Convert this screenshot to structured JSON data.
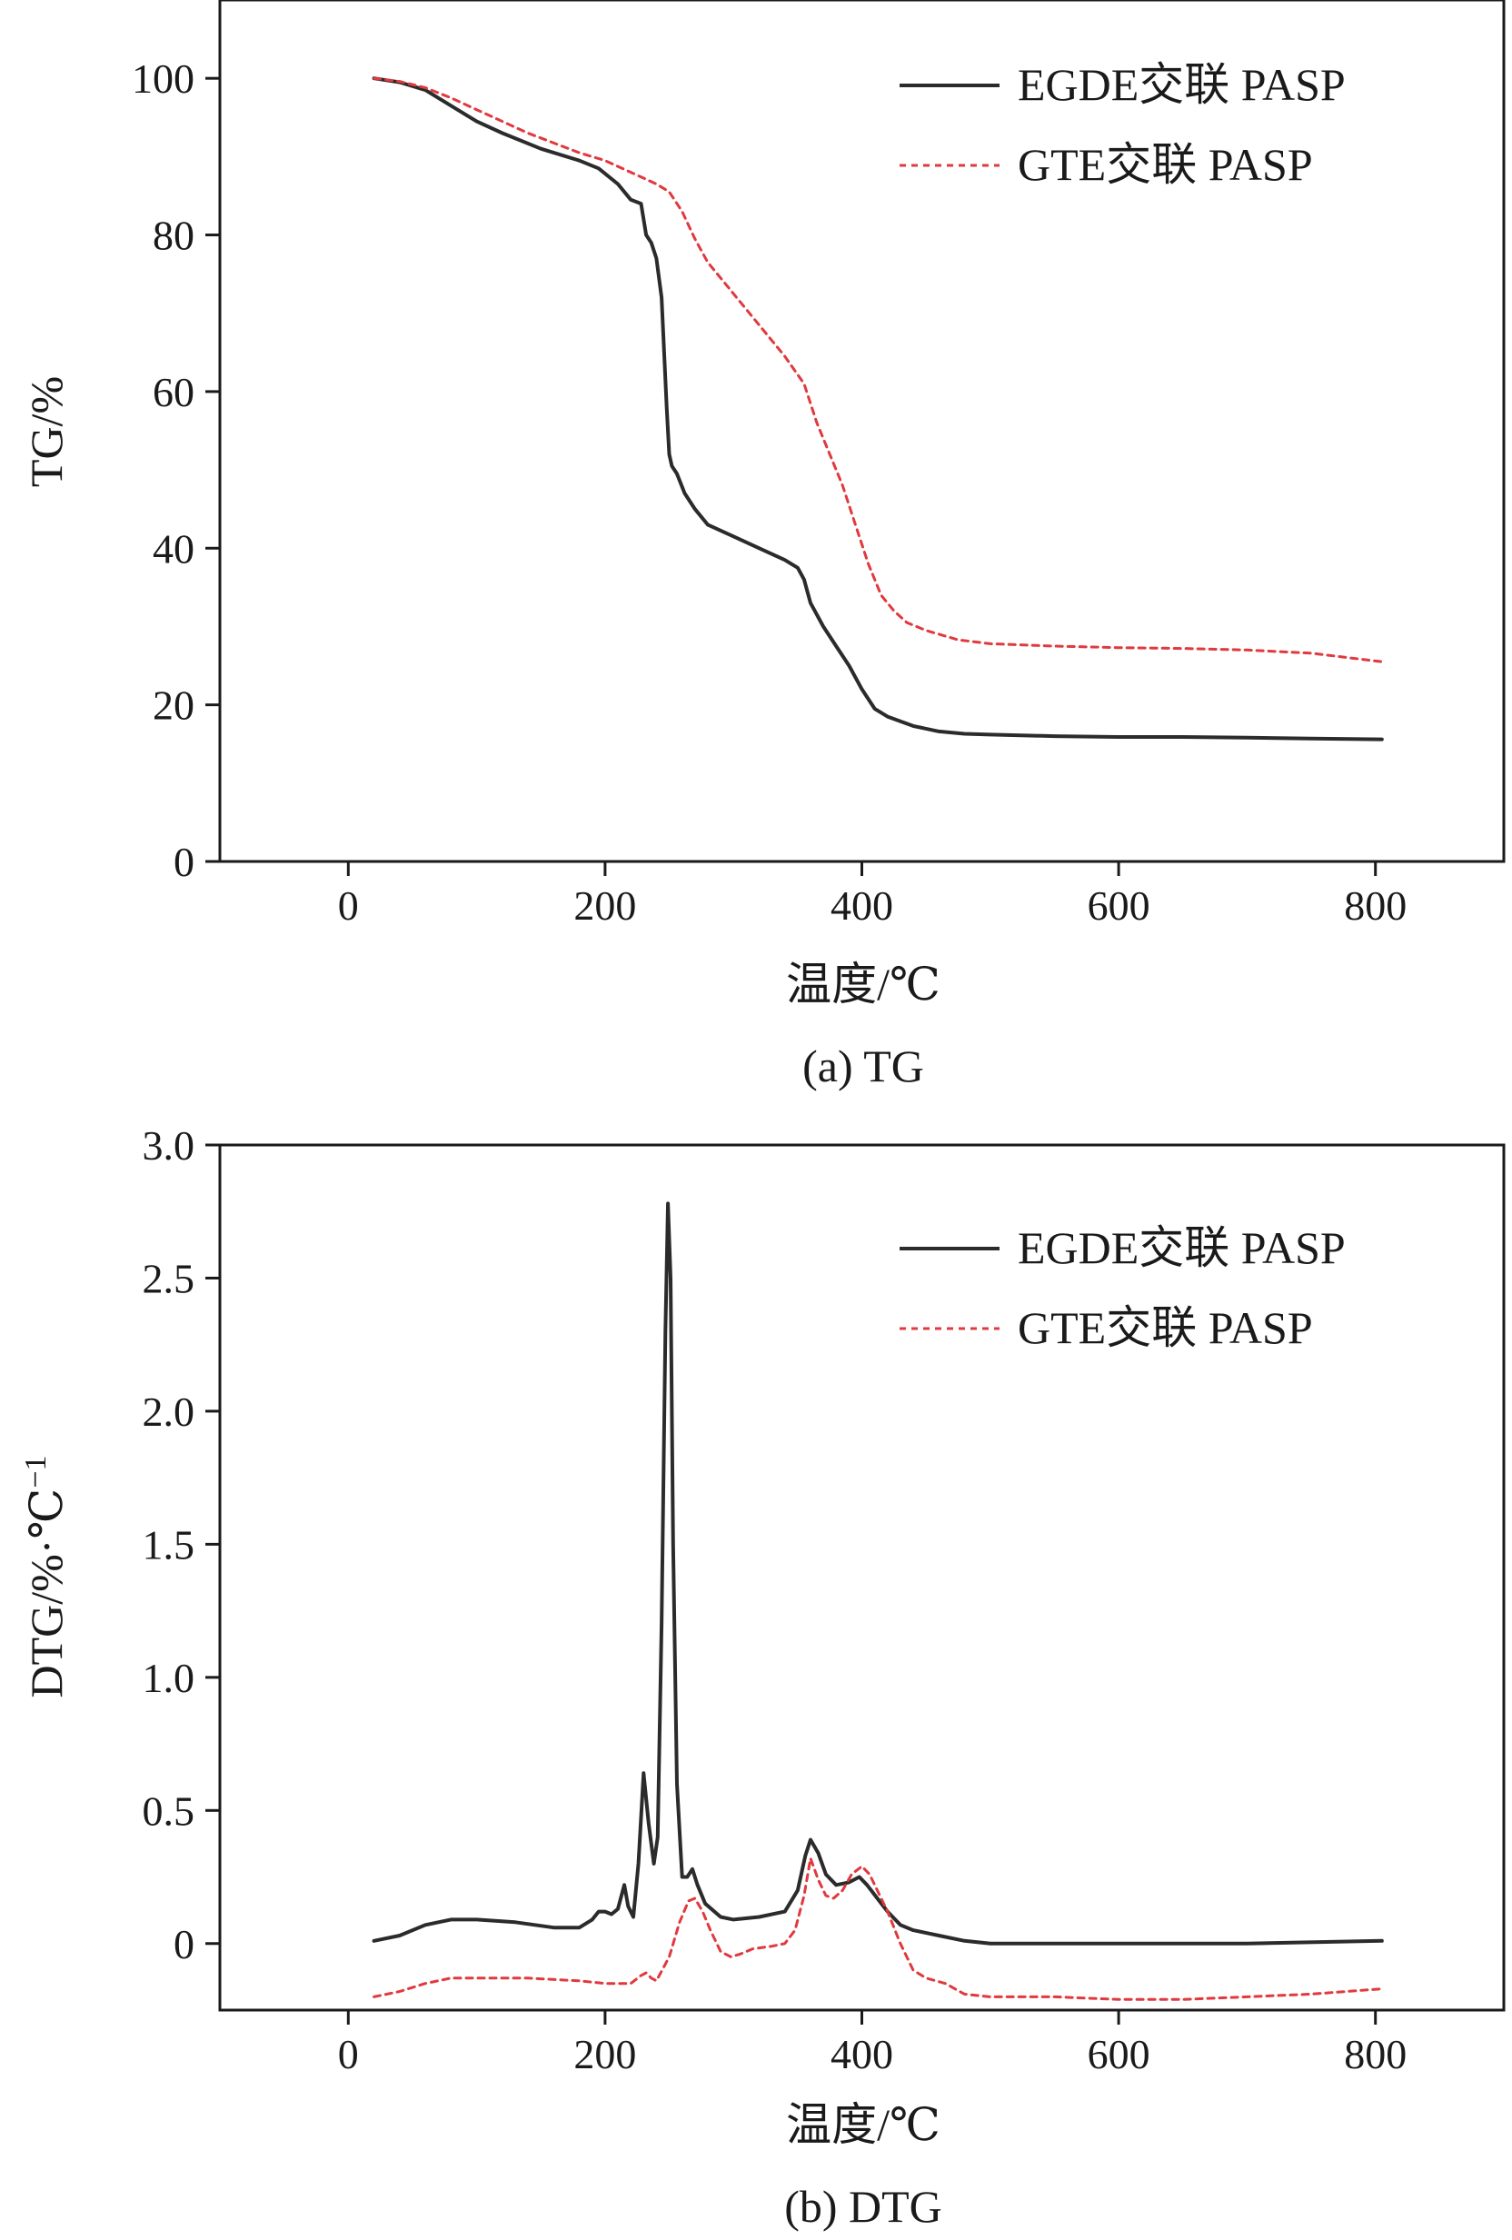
{
  "colors": {
    "egde": "#2b2b2b",
    "gte": "#e0393e",
    "axis": "#1a1a1a"
  },
  "chart_data": [
    {
      "type": "line",
      "caption": "(a) TG",
      "xlabel": "温度/℃",
      "ylabel": "TG/%",
      "xlim": [
        -100,
        900
      ],
      "ylim": [
        0,
        110
      ],
      "xticks": [
        0,
        200,
        400,
        600,
        800
      ],
      "xtick_labels": [
        "0",
        "200",
        "400",
        "600",
        "800"
      ],
      "yticks": [
        0,
        20,
        40,
        60,
        80,
        100
      ],
      "ytick_labels": [
        "0",
        "20",
        "40",
        "60",
        "80",
        "100"
      ],
      "legend": [
        "EGDE交联 PASP",
        "GTE交联 PASP"
      ],
      "series": [
        {
          "name": "EGDE交联 PASP",
          "style": "solid",
          "x": [
            20,
            40,
            60,
            80,
            100,
            120,
            150,
            180,
            195,
            210,
            220,
            228,
            232,
            236,
            240,
            244,
            246,
            248,
            250,
            252,
            256,
            262,
            270,
            280,
            300,
            320,
            340,
            350,
            355,
            360,
            370,
            380,
            390,
            400,
            410,
            420,
            440,
            460,
            480,
            500,
            550,
            600,
            650,
            700,
            750,
            805
          ],
          "y": [
            100,
            99.5,
            98.5,
            96.5,
            94.5,
            93,
            91,
            89.5,
            88.5,
            86.5,
            84.5,
            84,
            80,
            79,
            77,
            72,
            65,
            58,
            52,
            50.5,
            49.5,
            47,
            45,
            43,
            41.5,
            40,
            38.5,
            37.5,
            36,
            33,
            30,
            27.5,
            25,
            22,
            19.5,
            18.5,
            17.3,
            16.6,
            16.3,
            16.2,
            16,
            15.9,
            15.9,
            15.8,
            15.7,
            15.6
          ]
        },
        {
          "name": "GTE交联 PASP",
          "style": "dashed",
          "x": [
            20,
            40,
            60,
            80,
            100,
            140,
            180,
            200,
            220,
            240,
            250,
            260,
            270,
            280,
            290,
            300,
            320,
            340,
            355,
            365,
            375,
            385,
            395,
            405,
            415,
            425,
            435,
            450,
            475,
            500,
            550,
            600,
            650,
            700,
            750,
            805
          ],
          "y": [
            100,
            99.6,
            98.8,
            97.5,
            96,
            93,
            90.5,
            89.5,
            88,
            86.5,
            85.5,
            83,
            79.5,
            76.5,
            74.5,
            72.5,
            68.5,
            64.5,
            61,
            56,
            52,
            48,
            43,
            38,
            34,
            32,
            30.5,
            29.5,
            28.3,
            27.8,
            27.5,
            27.3,
            27.2,
            27,
            26.6,
            25.5
          ]
        }
      ]
    },
    {
      "type": "line",
      "caption": "(b) DTG",
      "xlabel": "温度/℃",
      "ylabel": "DTG/%·℃⁻¹",
      "ylabel_parts": {
        "main": "DTG/%·℃",
        "sup": "−1"
      },
      "xlim": [
        -100,
        900
      ],
      "ylim": [
        -0.25,
        3.0
      ],
      "xticks": [
        0,
        200,
        400,
        600,
        800
      ],
      "xtick_labels": [
        "0",
        "200",
        "400",
        "600",
        "800"
      ],
      "yticks": [
        0,
        0.5,
        1.0,
        1.5,
        2.0,
        2.5,
        3.0
      ],
      "ytick_labels": [
        "0",
        "0.5",
        "1.0",
        "1.5",
        "2.0",
        "2.5",
        "3.0"
      ],
      "legend": [
        "EGDE交联 PASP",
        "GTE交联 PASP"
      ],
      "series": [
        {
          "name": "EGDE交联 PASP",
          "style": "solid",
          "x": [
            20,
            40,
            60,
            80,
            100,
            130,
            160,
            180,
            190,
            195,
            200,
            205,
            210,
            215,
            218,
            222,
            226,
            230,
            234,
            238,
            241,
            244,
            247,
            249,
            251,
            253,
            256,
            260,
            264,
            268,
            272,
            278,
            290,
            300,
            320,
            340,
            350,
            356,
            360,
            366,
            372,
            380,
            390,
            398,
            404,
            412,
            420,
            430,
            440,
            460,
            480,
            500,
            600,
            700,
            805
          ],
          "y": [
            0.01,
            0.03,
            0.07,
            0.09,
            0.09,
            0.08,
            0.06,
            0.06,
            0.09,
            0.12,
            0.12,
            0.11,
            0.13,
            0.22,
            0.14,
            0.1,
            0.3,
            0.64,
            0.45,
            0.3,
            0.4,
            1.2,
            2.3,
            2.78,
            2.5,
            1.5,
            0.6,
            0.25,
            0.25,
            0.28,
            0.22,
            0.15,
            0.1,
            0.09,
            0.1,
            0.12,
            0.2,
            0.33,
            0.39,
            0.34,
            0.26,
            0.22,
            0.23,
            0.25,
            0.22,
            0.17,
            0.12,
            0.07,
            0.05,
            0.03,
            0.01,
            0,
            0,
            0,
            0.01
          ]
        },
        {
          "name": "GTE交联 PASP",
          "style": "dashed",
          "x": [
            20,
            40,
            60,
            80,
            100,
            140,
            180,
            200,
            220,
            228,
            232,
            236,
            240,
            250,
            258,
            265,
            270,
            276,
            282,
            290,
            298,
            305,
            315,
            330,
            340,
            348,
            355,
            360,
            366,
            372,
            378,
            385,
            392,
            400,
            406,
            412,
            420,
            430,
            440,
            450,
            465,
            480,
            500,
            550,
            600,
            650,
            700,
            750,
            805
          ],
          "y": [
            -0.2,
            -0.18,
            -0.15,
            -0.13,
            -0.13,
            -0.13,
            -0.14,
            -0.15,
            -0.15,
            -0.12,
            -0.11,
            -0.13,
            -0.14,
            -0.05,
            0.08,
            0.16,
            0.17,
            0.12,
            0.05,
            -0.03,
            -0.05,
            -0.04,
            -0.02,
            -0.01,
            0.0,
            0.05,
            0.18,
            0.32,
            0.24,
            0.18,
            0.17,
            0.2,
            0.26,
            0.29,
            0.26,
            0.2,
            0.12,
            0.0,
            -0.1,
            -0.13,
            -0.15,
            -0.19,
            -0.2,
            -0.2,
            -0.21,
            -0.21,
            -0.2,
            -0.19,
            -0.17
          ]
        }
      ]
    }
  ]
}
